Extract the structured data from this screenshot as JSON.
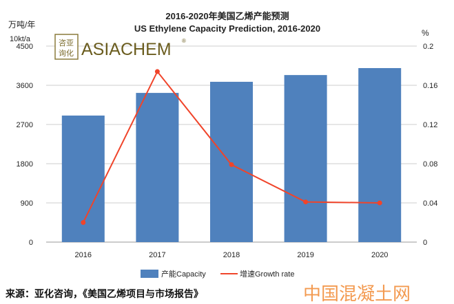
{
  "chart_data": {
    "type": "bar",
    "title": "2016-2020年美国乙烯产能预测",
    "subtitle": "US Ethylene Capacity Prediction, 2016-2020",
    "ylabel_line1": "万吨/年",
    "ylabel_line2": "10kt/a",
    "y2label": "%",
    "categories": [
      "2016",
      "2017",
      "2018",
      "2019",
      "2020"
    ],
    "ylim": [
      0,
      4500
    ],
    "yticks": [
      "0",
      "900",
      "1800",
      "2700",
      "3600",
      "4500"
    ],
    "y2lim": [
      0,
      0.2
    ],
    "y2ticks": [
      "0",
      "0.04",
      "0.08",
      "0.12",
      "0.16",
      "0.2"
    ],
    "grid": true,
    "legend_placement": "bottom",
    "series": [
      {
        "name": "产能Capacity",
        "type": "bar",
        "axis": "left",
        "color": "#4F81BD",
        "values": [
          2905,
          3425,
          3680,
          3835,
          3995
        ]
      },
      {
        "name": "增速Growth rate",
        "type": "line",
        "axis": "right",
        "color": "#F0442A",
        "values": [
          0.02,
          0.174,
          0.079,
          0.041,
          0.04
        ]
      }
    ]
  },
  "logo": {
    "cn": "咨亚询化",
    "text": "ASIACHEM",
    "mark": "®"
  },
  "watermark": "中国混凝土网",
  "source": "来源：亚化咨询，《美国乙烯项目与市场报告》"
}
